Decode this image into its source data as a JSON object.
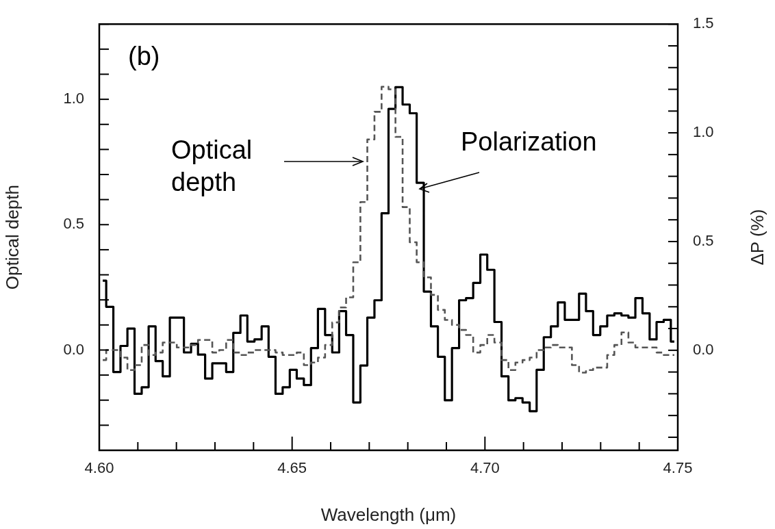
{
  "chart_data": {
    "type": "step",
    "xlabel": "Wavelength (μm)",
    "ylabel": "Optical depth",
    "y2label": "ΔP (%)",
    "annotations": [
      "(b)",
      "Optical depth",
      "Polarization"
    ],
    "x": [
      4.6009,
      4.6027,
      4.6046,
      4.6064,
      4.6082,
      4.6101,
      4.6119,
      4.6137,
      4.6155,
      4.6174,
      4.6192,
      4.621,
      4.6229,
      4.6247,
      4.6265,
      4.6284,
      4.6302,
      4.632,
      4.6338,
      4.6357,
      4.6375,
      4.6393,
      4.6412,
      4.643,
      4.6448,
      4.6466,
      4.6485,
      4.6503,
      4.6521,
      4.654,
      4.6558,
      4.6576,
      4.6595,
      4.6613,
      4.6631,
      4.6649,
      4.6668,
      4.6686,
      4.6704,
      4.6723,
      4.6741,
      4.6759,
      4.6777,
      4.6796,
      4.6814,
      4.6832,
      4.6851,
      4.6869,
      4.6887,
      4.6905,
      4.6924,
      4.6942,
      4.696,
      4.6979,
      4.6997,
      4.7015,
      4.7034,
      4.7052,
      4.707,
      4.7088,
      4.7107,
      4.7125,
      4.7143,
      4.7162,
      4.718,
      4.7198,
      4.7216,
      4.7235,
      4.7253,
      4.7271,
      4.729,
      4.7308,
      4.7326,
      4.7345,
      4.7363,
      4.7381,
      4.7399,
      4.7418,
      4.7436,
      4.7454,
      4.7473,
      4.7491
    ],
    "series": [
      {
        "color": "#555555",
        "line_style": "dashed",
        "values": [
          -0.04,
          0.0,
          0.0,
          -0.03,
          -0.08,
          -0.06,
          0.02,
          -0.02,
          -0.01,
          0.03,
          0.03,
          0.01,
          0.01,
          0.02,
          0.04,
          0.04,
          -0.01,
          0.0,
          0.04,
          -0.01,
          -0.02,
          -0.01,
          0.0,
          0.0,
          0.0,
          -0.01,
          -0.02,
          -0.02,
          -0.01,
          -0.06,
          -0.05,
          -0.03,
          0.02,
          0.11,
          0.17,
          0.21,
          0.35,
          0.59,
          0.84,
          0.95,
          1.05,
          1.04,
          0.85,
          0.57,
          0.43,
          0.35,
          0.29,
          0.22,
          0.16,
          0.12,
          0.1,
          0.08,
          0.06,
          -0.01,
          0.02,
          0.06,
          0.03,
          -0.04,
          -0.08,
          -0.05,
          -0.04,
          -0.03,
          0.0,
          0.01,
          0.02,
          0.01,
          0.01,
          -0.06,
          -0.09,
          -0.08,
          -0.07,
          -0.07,
          -0.02,
          0.02,
          0.07,
          0.03,
          0.01,
          0.01,
          0.01,
          -0.01,
          -0.02,
          -0.02
        ]
      },
      {
        "color": "#000000",
        "line_style": "solid",
        "axis": "y2",
        "values": [
          0.32,
          0.2,
          -0.1,
          0.02,
          0.1,
          -0.2,
          -0.17,
          0.11,
          -0.05,
          -0.12,
          0.15,
          0.15,
          -0.01,
          0.03,
          -0.02,
          -0.13,
          -0.06,
          -0.06,
          -0.1,
          0.08,
          0.16,
          0.04,
          0.05,
          0.11,
          -0.03,
          -0.2,
          -0.17,
          -0.09,
          -0.13,
          -0.16,
          0.01,
          0.19,
          0.07,
          -0.01,
          0.18,
          0.07,
          -0.24,
          -0.07,
          0.15,
          0.23,
          0.63,
          1.11,
          1.21,
          1.13,
          1.09,
          0.77,
          0.27,
          0.11,
          -0.03,
          -0.23,
          0.01,
          0.23,
          0.24,
          0.31,
          0.44,
          0.37,
          0.13,
          -0.12,
          -0.23,
          -0.22,
          -0.24,
          -0.28,
          -0.09,
          0.06,
          0.11,
          0.22,
          0.14,
          0.14,
          0.26,
          0.18,
          0.07,
          0.11,
          0.16,
          0.17,
          0.16,
          0.15,
          0.24,
          0.17,
          0.05,
          0.13,
          0.14,
          0.04
        ]
      }
    ],
    "xlim": [
      4.6,
      4.75
    ],
    "xticks": [
      {
        "value": 4.6,
        "label": "4.60"
      },
      {
        "value": 4.61,
        "label": null
      },
      {
        "value": 4.62,
        "label": null
      },
      {
        "value": 4.63,
        "label": null
      },
      {
        "value": 4.64,
        "label": null
      },
      {
        "value": 4.65,
        "label": "4.65"
      },
      {
        "value": 4.66,
        "label": null
      },
      {
        "value": 4.67,
        "label": null
      },
      {
        "value": 4.68,
        "label": null
      },
      {
        "value": 4.69,
        "label": null
      },
      {
        "value": 4.7,
        "label": "4.70"
      },
      {
        "value": 4.71,
        "label": null
      },
      {
        "value": 4.72,
        "label": null
      },
      {
        "value": 4.73,
        "label": null
      },
      {
        "value": 4.74,
        "label": null
      },
      {
        "value": 4.75,
        "label": "4.75"
      }
    ],
    "ylim": [
      -0.4,
      1.3
    ],
    "yticks": [
      {
        "value": -0.4,
        "label": null
      },
      {
        "value": -0.3,
        "label": null
      },
      {
        "value": -0.2,
        "label": null
      },
      {
        "value": -0.1,
        "label": null
      },
      {
        "value": 0,
        "label": "0.0"
      },
      {
        "value": 0.1,
        "label": null
      },
      {
        "value": 0.2,
        "label": null
      },
      {
        "value": 0.3,
        "label": null
      },
      {
        "value": 0.4,
        "label": null
      },
      {
        "value": 0.5,
        "label": "0.5"
      },
      {
        "value": 0.6,
        "label": null
      },
      {
        "value": 0.7,
        "label": null
      },
      {
        "value": 0.8,
        "label": null
      },
      {
        "value": 0.9,
        "label": null
      },
      {
        "value": 1,
        "label": "1.0"
      },
      {
        "value": 1.1,
        "label": null
      },
      {
        "value": 1.2,
        "label": null
      },
      {
        "value": 1.3,
        "label": null
      }
    ],
    "y2lim": [
      -0.46,
      1.5
    ],
    "y2ticks": [
      {
        "value": -0.4,
        "label": null
      },
      {
        "value": -0.3,
        "label": null
      },
      {
        "value": -0.2,
        "label": null
      },
      {
        "value": -0.1,
        "label": null
      },
      {
        "value": 0,
        "label": "0.0"
      },
      {
        "value": 0.1,
        "label": null
      },
      {
        "value": 0.2,
        "label": null
      },
      {
        "value": 0.3,
        "label": null
      },
      {
        "value": 0.4,
        "label": null
      },
      {
        "value": 0.5,
        "label": "0.5"
      },
      {
        "value": 0.6,
        "label": null
      },
      {
        "value": 0.7,
        "label": null
      },
      {
        "value": 0.8,
        "label": null
      },
      {
        "value": 0.9,
        "label": null
      },
      {
        "value": 1,
        "label": "1.0"
      },
      {
        "value": 1.1,
        "label": null
      },
      {
        "value": 1.2,
        "label": null
      },
      {
        "value": 1.3,
        "label": null
      },
      {
        "value": 1.4,
        "label": null
      },
      {
        "value": 1.5,
        "label": "1.5"
      }
    ]
  }
}
